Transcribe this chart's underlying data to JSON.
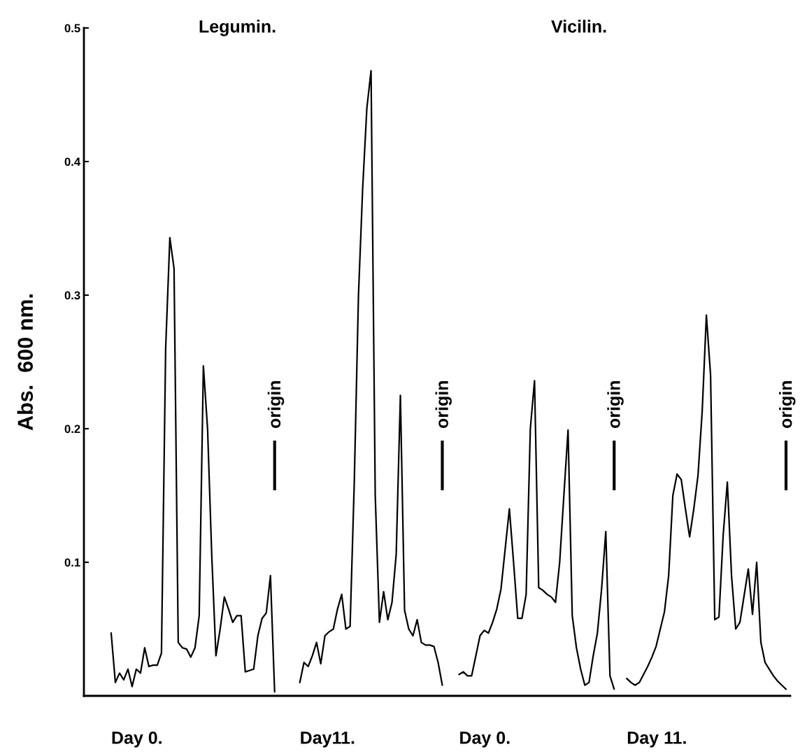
{
  "chart_data": {
    "type": "line",
    "ylabel": "Abs.  600 nm.",
    "annotations": [
      "Legumin.",
      "Vicilin.",
      "Day 0.",
      "Day11.",
      "Day 0.",
      "Day 11.",
      "origin",
      "origin",
      "origin",
      "origin"
    ],
    "categories": [
      null,
      null,
      null,
      null,
      null,
      null,
      null,
      null,
      null,
      null,
      null,
      null,
      null,
      null,
      null,
      null,
      null,
      null,
      null,
      null,
      null,
      null,
      null,
      null,
      null,
      null,
      null,
      null,
      null,
      null,
      null,
      null,
      null,
      null,
      null,
      null,
      null,
      null,
      null,
      null,
      null,
      null,
      null,
      null,
      null,
      null,
      null,
      null,
      null,
      null,
      null,
      null,
      null,
      null,
      null,
      null,
      null,
      null,
      null,
      null,
      null,
      null,
      null,
      null,
      null,
      null,
      null,
      null,
      null,
      null,
      null,
      null,
      null,
      null,
      null,
      null,
      null,
      null,
      null,
      null,
      null,
      null,
      null,
      null,
      null,
      null,
      null,
      null,
      null,
      null,
      null,
      null,
      null,
      null,
      null,
      null,
      null,
      null,
      null,
      null,
      null,
      null,
      null,
      null,
      null,
      null,
      null,
      null,
      null,
      null,
      null,
      null,
      null,
      null,
      null,
      null,
      null,
      null,
      null,
      null,
      null,
      null,
      null,
      null,
      null,
      null,
      null,
      null,
      null,
      null,
      null,
      null,
      null,
      null,
      null,
      null,
      null,
      null,
      null,
      null,
      null,
      null,
      null,
      null,
      null,
      null,
      null,
      null,
      null,
      null,
      null,
      null,
      null,
      null,
      null,
      null,
      null,
      null,
      null,
      null,
      null,
      null,
      null,
      null,
      null,
      null,
      null,
      null
    ],
    "values": [
      null,
      null,
      null,
      null,
      null,
      null,
      0.047,
      0.01,
      0.017,
      0.012,
      0.02,
      0.007,
      0.02,
      0.017,
      0.036,
      0.022,
      0.023,
      0.023,
      0.032,
      0.26,
      0.343,
      0.32,
      0.04,
      0.036,
      0.035,
      0.029,
      0.036,
      0.06,
      0.247,
      0.2,
      0.105,
      0.03,
      0.05,
      0.074,
      0.065,
      0.055,
      0.06,
      0.06,
      0.018,
      0.019,
      0.02,
      0.045,
      0.058,
      0.062,
      0.09,
      0.003,
      null,
      null,
      null,
      null,
      null,
      0.01,
      0.025,
      0.022,
      0.03,
      0.04,
      0.024,
      0.045,
      0.048,
      0.05,
      0.065,
      0.076,
      0.05,
      0.052,
      0.16,
      0.3,
      0.38,
      0.44,
      0.468,
      0.15,
      0.055,
      0.078,
      0.057,
      0.07,
      0.106,
      0.225,
      0.064,
      0.05,
      0.045,
      0.057,
      0.04,
      0.038,
      0.038,
      0.037,
      0.025,
      0.008,
      null,
      null,
      null,
      0.016,
      0.018,
      0.015,
      0.015,
      0.03,
      0.045,
      0.049,
      0.047,
      0.055,
      0.065,
      0.08,
      0.11,
      0.14,
      0.1,
      0.058,
      0.058,
      0.076,
      0.2,
      0.236,
      0.081,
      0.079,
      0.076,
      0.074,
      0.07,
      0.1,
      0.15,
      0.199,
      0.06,
      0.036,
      0.02,
      0.008,
      0.01,
      0.03,
      0.047,
      0.08,
      0.123,
      0.015,
      0.005,
      null,
      null,
      0.013,
      0.01,
      0.008,
      0.01,
      0.016,
      0.022,
      0.029,
      0.037,
      0.05,
      0.063,
      0.09,
      0.15,
      0.166,
      0.162,
      0.14,
      0.119,
      0.14,
      0.165,
      0.213,
      0.285,
      0.24,
      0.057,
      0.059,
      0.12,
      0.16,
      0.09,
      0.05,
      0.055,
      0.075,
      0.095,
      0.061,
      0.1,
      0.04,
      0.025,
      0.02,
      0.015,
      0.011,
      0.008,
      0.005
    ],
    "color": "#000000",
    "ylim": [
      0,
      0.5
    ],
    "yticks": [
      0.1,
      0.2,
      0.3,
      0.4,
      0.5
    ],
    "tick_labels": "y"
  }
}
